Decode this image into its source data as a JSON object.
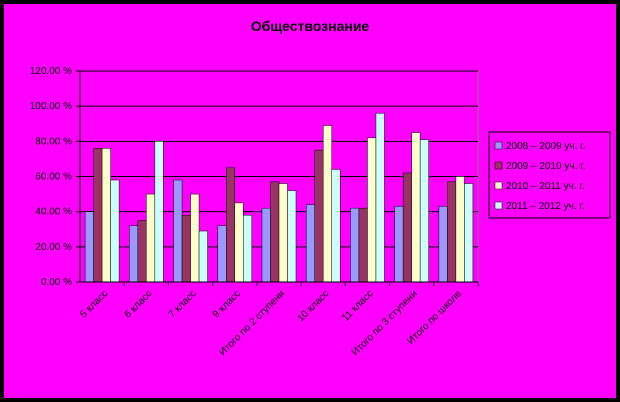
{
  "chart_data": {
    "type": "bar",
    "title": "Обществознание",
    "categories": [
      "5 класс",
      "6 класс",
      "7 класс",
      "9 класс",
      "Итого по 2 ступени",
      "10 класс",
      "11 класс",
      "Итого по 3 ступени",
      "Итого по школе"
    ],
    "series": [
      {
        "name": "2008 – 2009 уч. г.",
        "color": "#9999ff",
        "values": [
          40,
          32,
          58,
          32,
          42,
          44,
          42,
          43,
          43
        ]
      },
      {
        "name": "2009 – 2010 уч. г.",
        "color": "#993366",
        "values": [
          76,
          35,
          38,
          65,
          57,
          75,
          42,
          62,
          57
        ]
      },
      {
        "name": "2010 – 2011 уч. г.",
        "color": "#ffffcc",
        "values": [
          76,
          50,
          50,
          45,
          56,
          89,
          82,
          85,
          60
        ]
      },
      {
        "name": "2011 – 2012 уч. г.",
        "color": "#ccffff",
        "values": [
          58,
          80,
          29,
          38,
          52,
          64,
          96,
          81,
          56
        ]
      }
    ],
    "ylim": [
      0,
      120
    ],
    "yticks": [
      {
        "value": 0,
        "label": "0.00 %"
      },
      {
        "value": 20,
        "label": "20.00 %"
      },
      {
        "value": 40,
        "label": "40.00 %"
      },
      {
        "value": 60,
        "label": "60.00 %"
      },
      {
        "value": 80,
        "label": "80.00 %"
      },
      {
        "value": 100,
        "label": "100.00 %"
      },
      {
        "value": 120,
        "label": "120.00 %"
      }
    ],
    "grid": true,
    "legend": "right"
  }
}
